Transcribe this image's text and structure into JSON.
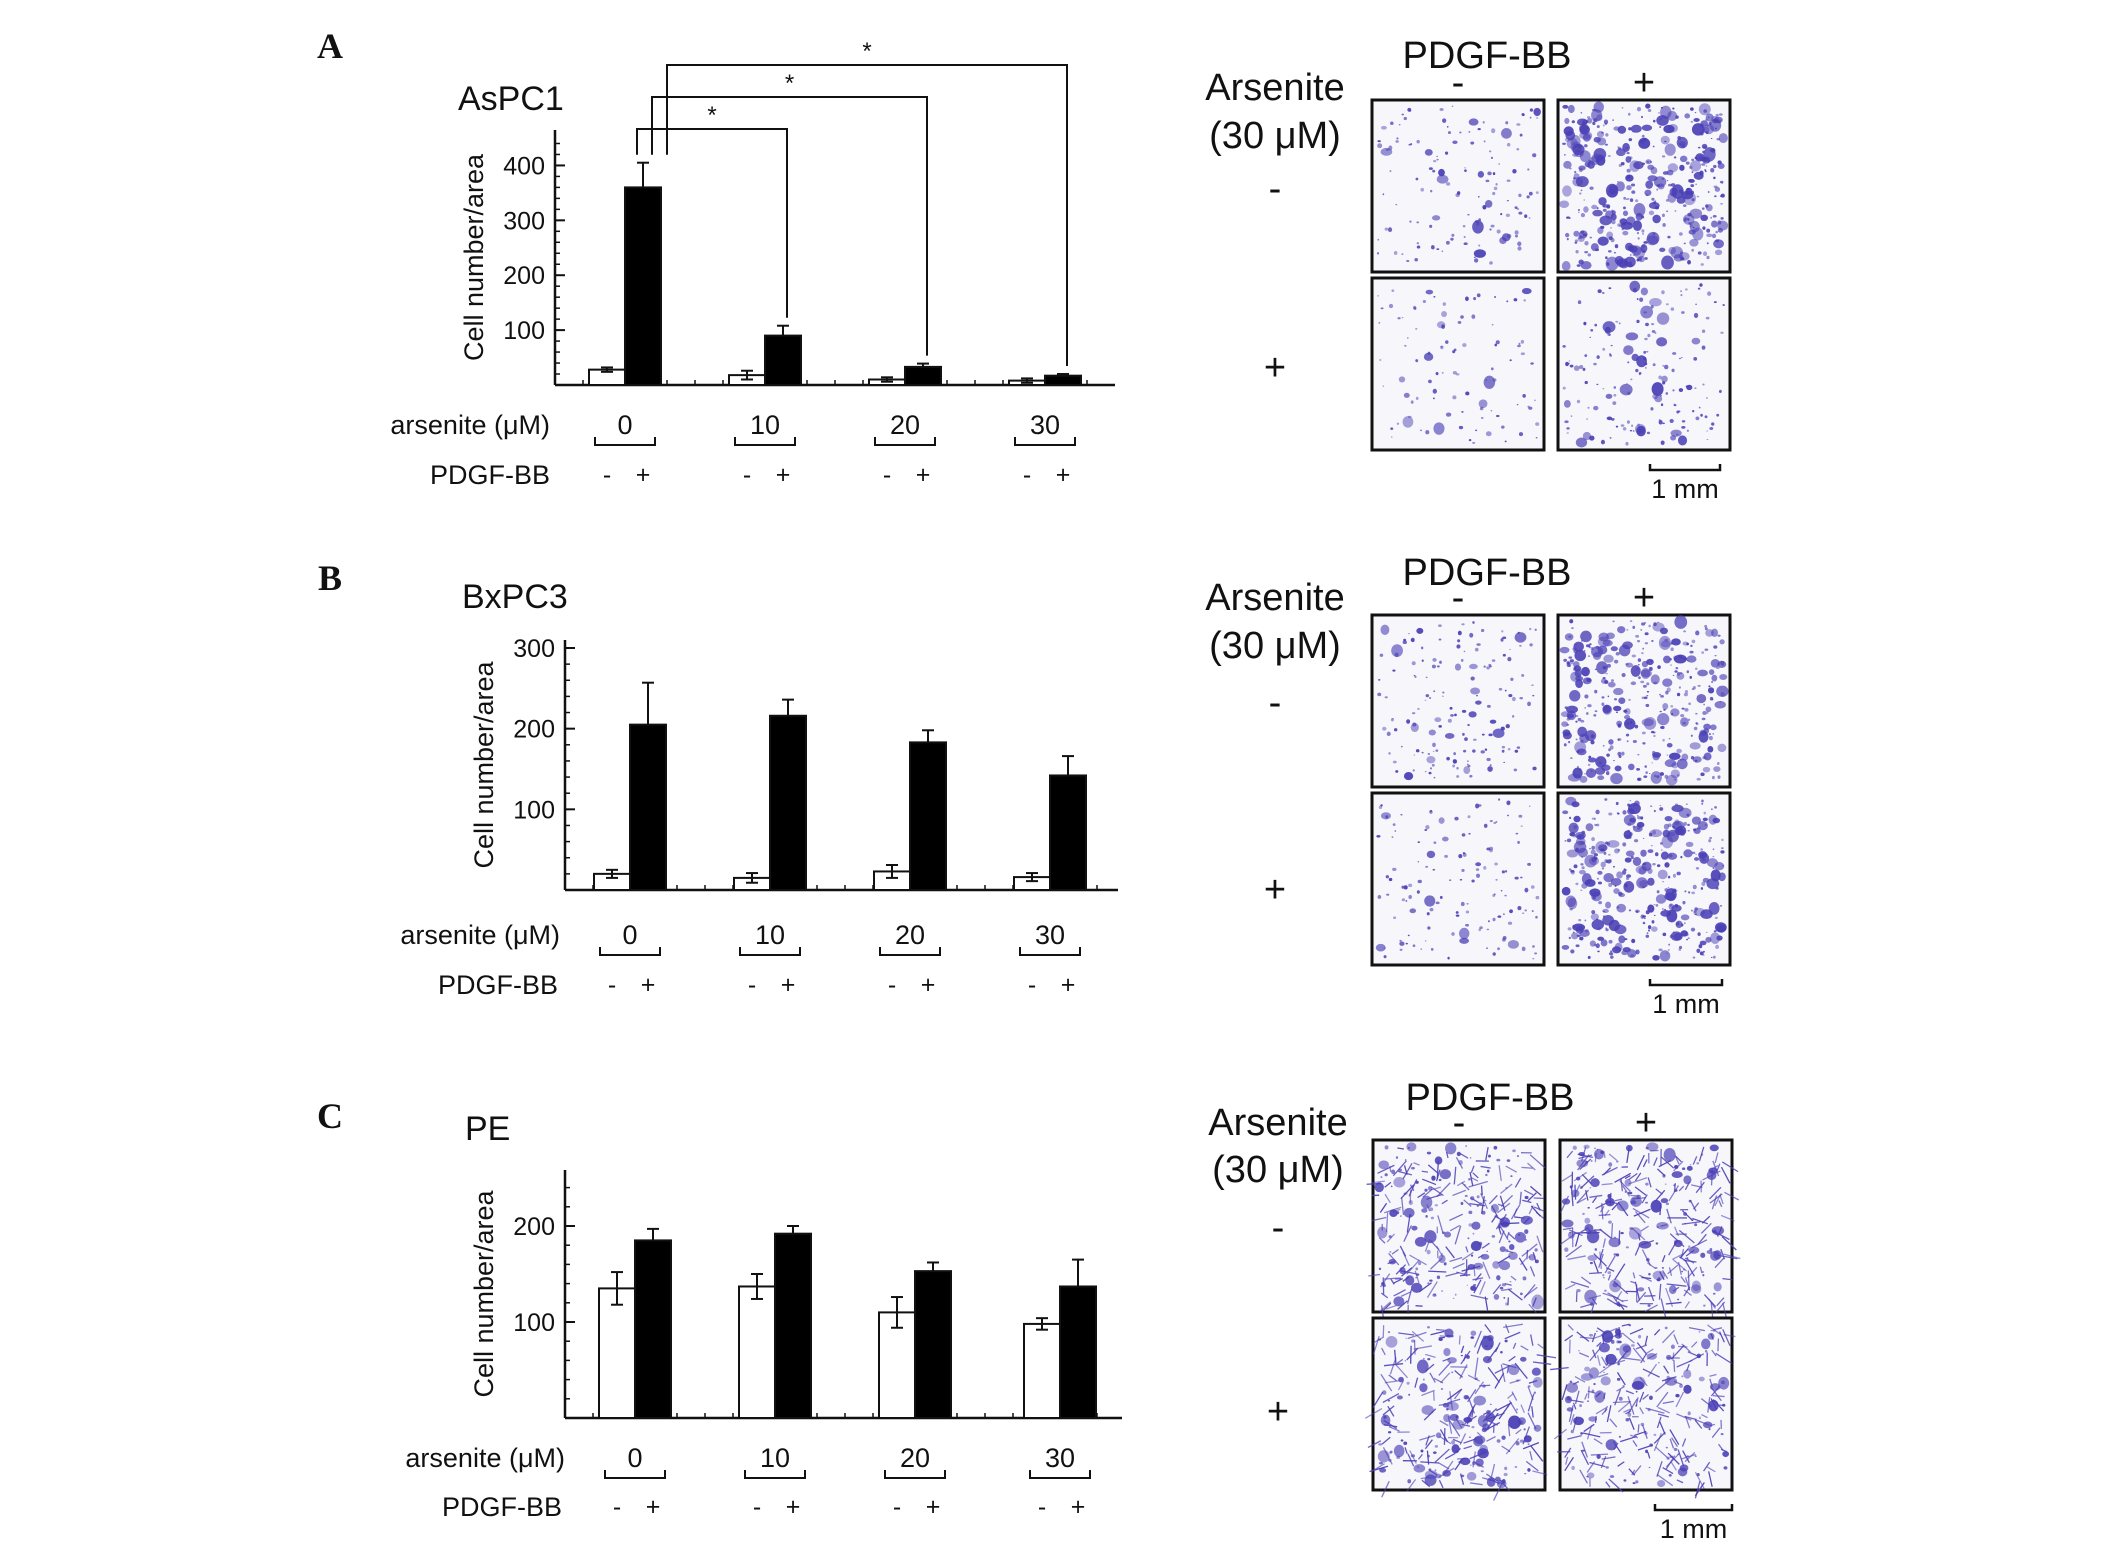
{
  "figure": {
    "row_label_arsenite": "arsenite (μM)",
    "row_label_pdgf": "PDGF-BB",
    "minus": "-",
    "plus": "+",
    "micrograph_header": "PDGF-BB",
    "micrograph_side_line1": "Arsenite",
    "micrograph_side_line2": "(30 μM)",
    "scale_bar": "1 mm",
    "colors": {
      "stain": "#4a3fb5",
      "control_bar": "#ffffff",
      "pdgf_bar": "#000000",
      "axis": "#111111"
    }
  },
  "chart_data": [
    {
      "panel": "A",
      "title": "AsPC1",
      "type": "bar",
      "ylabel": "Cell number/area",
      "categories": [
        "0",
        "10",
        "20",
        "30"
      ],
      "yticks": [
        100,
        200,
        300,
        400
      ],
      "ylim": [
        0,
        450
      ],
      "series": [
        {
          "name": "-",
          "fill": "#ffffff",
          "values": [
            28,
            18,
            10,
            8
          ],
          "errors": [
            4,
            8,
            4,
            4
          ]
        },
        {
          "name": "+",
          "fill": "#000000",
          "values": [
            360,
            90,
            33,
            17
          ],
          "errors": [
            45,
            18,
            6,
            3
          ]
        }
      ],
      "significance": [
        {
          "label": "*",
          "to_category": 1
        },
        {
          "label": "*",
          "to_category": 2
        },
        {
          "label": "*",
          "to_category": 3
        }
      ],
      "micrographs": [
        [
          0.25,
          1.0
        ],
        [
          0.15,
          0.35
        ]
      ]
    },
    {
      "panel": "B",
      "title": "BxPC3",
      "type": "bar",
      "ylabel": "Cell number/area",
      "categories": [
        "0",
        "10",
        "20",
        "30"
      ],
      "yticks": [
        100,
        200,
        300
      ],
      "ylim": [
        0,
        300
      ],
      "series": [
        {
          "name": "-",
          "fill": "#ffffff",
          "values": [
            20,
            15,
            23,
            16
          ],
          "errors": [
            5,
            6,
            8,
            5
          ]
        },
        {
          "name": "+",
          "fill": "#000000",
          "values": [
            205,
            216,
            183,
            142
          ],
          "errors": [
            52,
            20,
            15,
            24
          ]
        }
      ],
      "significance": [],
      "micrographs": [
        [
          0.3,
          0.85
        ],
        [
          0.25,
          0.9
        ]
      ]
    },
    {
      "panel": "C",
      "title": "PE",
      "type": "bar",
      "ylabel": "Cell number/area",
      "categories": [
        "0",
        "10",
        "20",
        "30"
      ],
      "yticks": [
        100,
        200
      ],
      "ylim": [
        0,
        250
      ],
      "series": [
        {
          "name": "-",
          "fill": "#ffffff",
          "values": [
            135,
            137,
            110,
            98
          ],
          "errors": [
            17,
            13,
            16,
            6
          ]
        },
        {
          "name": "+",
          "fill": "#000000",
          "values": [
            185,
            192,
            153,
            137
          ],
          "errors": [
            12,
            8,
            9,
            28
          ]
        }
      ],
      "significance": [],
      "micrographs": [
        [
          0.75,
          0.8
        ],
        [
          0.7,
          0.7
        ]
      ]
    }
  ]
}
